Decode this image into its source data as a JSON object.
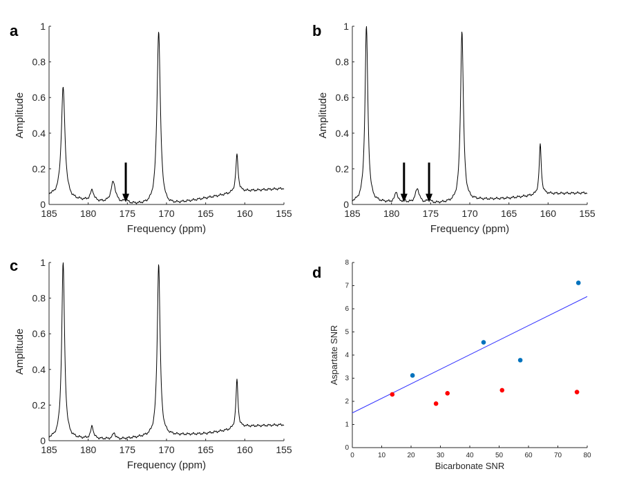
{
  "chart_data": [
    {
      "panel": "a",
      "type": "line",
      "xlabel": "Frequency (ppm)",
      "ylabel": "Amplitude",
      "xlim": [
        185,
        155
      ],
      "ylim": [
        0,
        1
      ],
      "xticks": [
        "185",
        "180",
        "175",
        "170",
        "165",
        "160",
        "155"
      ],
      "yticks": [
        "0",
        "0.2",
        "0.4",
        "0.6",
        "0.8",
        "1"
      ],
      "peaks": [
        [
          183.2,
          0.62,
          0.28
        ],
        [
          179.5,
          0.06,
          0.25
        ],
        [
          176.8,
          0.12,
          0.35
        ],
        [
          175.2,
          0.02,
          0.25
        ],
        [
          171.0,
          0.98,
          0.26
        ],
        [
          161.0,
          0.21,
          0.18
        ]
      ],
      "baseline": [
        [
          185,
          0.05
        ],
        [
          182,
          0.025
        ],
        [
          180,
          0.02
        ],
        [
          177,
          0.005
        ],
        [
          174,
          0.0
        ],
        [
          170,
          -0.01
        ],
        [
          168,
          0.01
        ],
        [
          165,
          0.035
        ],
        [
          162,
          0.06
        ],
        [
          160,
          0.075
        ],
        [
          155,
          0.09
        ]
      ],
      "arrows": [
        175.2
      ]
    },
    {
      "panel": "b",
      "type": "line",
      "xlabel": "Frequency (ppm)",
      "ylabel": "Amplitude",
      "xlim": [
        185,
        155
      ],
      "ylim": [
        0,
        1
      ],
      "xticks": [
        "185",
        "180",
        "175",
        "170",
        "165",
        "160",
        "155"
      ],
      "yticks": [
        "0",
        "0.2",
        "0.4",
        "0.6",
        "0.8",
        "1"
      ],
      "peaks": [
        [
          183.2,
          0.99,
          0.22
        ],
        [
          179.4,
          0.06,
          0.2
        ],
        [
          178.4,
          0.012,
          0.2
        ],
        [
          176.7,
          0.08,
          0.3
        ],
        [
          175.2,
          0.02,
          0.25
        ],
        [
          171.0,
          0.96,
          0.22
        ],
        [
          161.0,
          0.28,
          0.16
        ]
      ],
      "baseline": [
        [
          185,
          0.01
        ],
        [
          180,
          0.01
        ],
        [
          175,
          0.005
        ],
        [
          172,
          0.01
        ],
        [
          169,
          0.025
        ],
        [
          165,
          0.035
        ],
        [
          162,
          0.05
        ],
        [
          160,
          0.06
        ],
        [
          155,
          0.065
        ]
      ],
      "arrows": [
        178.4,
        175.2
      ]
    },
    {
      "panel": "c",
      "type": "line",
      "xlabel": "Frequency (ppm)",
      "ylabel": "Amplitude",
      "xlim": [
        185,
        155
      ],
      "ylim": [
        0,
        1
      ],
      "xticks": [
        "185",
        "180",
        "175",
        "170",
        "165",
        "160",
        "155"
      ],
      "yticks": [
        "0",
        "0.2",
        "0.4",
        "0.6",
        "0.8",
        "1"
      ],
      "peaks": [
        [
          183.2,
          0.99,
          0.22
        ],
        [
          179.5,
          0.07,
          0.2
        ],
        [
          176.7,
          0.035,
          0.2
        ],
        [
          171.0,
          0.97,
          0.22
        ],
        [
          161.0,
          0.27,
          0.16
        ]
      ],
      "baseline": [
        [
          185,
          0.01
        ],
        [
          180,
          0.01
        ],
        [
          176,
          0.008
        ],
        [
          173,
          0.02
        ],
        [
          169,
          0.03
        ],
        [
          165,
          0.04
        ],
        [
          162,
          0.06
        ],
        [
          160,
          0.08
        ],
        [
          155,
          0.09
        ]
      ],
      "arrows": []
    },
    {
      "panel": "d",
      "type": "scatter",
      "xlabel": "Bicarbonate SNR",
      "ylabel": "Aspartate SNR",
      "xlim": [
        0,
        80
      ],
      "ylim": [
        0,
        8
      ],
      "xticks": [
        "0",
        "10",
        "20",
        "30",
        "40",
        "50",
        "60",
        "70",
        "80"
      ],
      "yticks": [
        "0",
        "1",
        "2",
        "3",
        "4",
        "5",
        "6",
        "7",
        "8"
      ],
      "series": [
        {
          "name": "blue",
          "color": "#0072bd",
          "points": [
            [
              20.5,
              3.12
            ],
            [
              44.7,
              4.55
            ],
            [
              57.2,
              3.78
            ],
            [
              77.0,
              7.12
            ]
          ]
        },
        {
          "name": "red",
          "color": "#ff0000",
          "points": [
            [
              13.6,
              2.3
            ],
            [
              28.5,
              1.9
            ],
            [
              32.4,
              2.35
            ],
            [
              51.0,
              2.48
            ],
            [
              76.5,
              2.4
            ]
          ]
        }
      ],
      "fit_line": {
        "color": "#3333ff",
        "points": [
          [
            0,
            1.5
          ],
          [
            80,
            6.53
          ]
        ]
      }
    }
  ]
}
